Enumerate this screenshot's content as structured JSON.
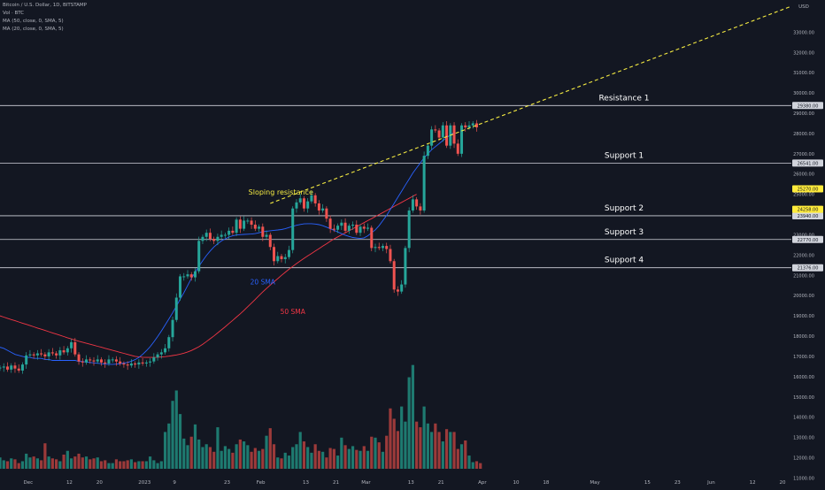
{
  "header": {
    "title": "Bitcoin / U.S. Dollar, 1D, BITSTAMP",
    "volume_label": "Vol · BTC",
    "ma50_label": "MA (50, close, 0, SMA, 5)",
    "ma20_label": "MA (20, close, 0, SMA, 5)"
  },
  "chart_data": {
    "type": "candlestick",
    "currency_label": "USD",
    "ylim": [
      10800,
      34500
    ],
    "price_ticks": [
      11000,
      12000,
      13000,
      14000,
      15000,
      16000,
      17000,
      18000,
      19000,
      20000,
      21000,
      22000,
      23000,
      24000,
      25000,
      26000,
      27000,
      28000,
      29000,
      30000,
      31000,
      32000,
      33000
    ],
    "time_labels": [
      {
        "label": "Dec",
        "bar": 7.5
      },
      {
        "label": "12",
        "bar": 18.5
      },
      {
        "label": "20",
        "bar": 26.5
      },
      {
        "label": "2023",
        "bar": 38.5
      },
      {
        "label": "9",
        "bar": 46.5
      },
      {
        "label": "23",
        "bar": 60.5
      },
      {
        "label": "Feb",
        "bar": 69.5
      },
      {
        "label": "13",
        "bar": 81.5
      },
      {
        "label": "21",
        "bar": 89.5
      },
      {
        "label": "Mar",
        "bar": 97.5
      },
      {
        "label": "13",
        "bar": 109.5
      },
      {
        "label": "21",
        "bar": 117.5
      },
      {
        "label": "Apr",
        "bar": 128.5
      },
      {
        "label": "10",
        "bar": 137.5
      },
      {
        "label": "18",
        "bar": 145.5
      },
      {
        "label": "May",
        "bar": 158.5
      },
      {
        "label": "15",
        "bar": 172.5
      },
      {
        "label": "23",
        "bar": 180.5
      },
      {
        "label": "Jun",
        "bar": 189.5
      },
      {
        "label": "12",
        "bar": 200.5
      },
      {
        "label": "20",
        "bar": 208.5
      }
    ],
    "closes": [
      16450,
      16500,
      16350,
      16550,
      16400,
      16300,
      16600,
      17050,
      17100,
      17050,
      17150,
      17100,
      17000,
      17200,
      17150,
      17050,
      17300,
      17200,
      17400,
      17700,
      17100,
      16750,
      16700,
      16850,
      16800,
      16750,
      16850,
      16700,
      16650,
      16850,
      16850,
      16750,
      16650,
      16600,
      16550,
      16650,
      16600,
      16700,
      16650,
      16700,
      16750,
      16950,
      17100,
      17200,
      17400,
      17950,
      18800,
      19900,
      20950,
      20950,
      21050,
      20900,
      21200,
      22700,
      22900,
      23100,
      22800,
      22700,
      22900,
      23000,
      23000,
      23200,
      23100,
      23750,
      23300,
      23700,
      23700,
      23500,
      23300,
      23400,
      22900,
      23000,
      22400,
      21700,
      21950,
      21800,
      21900,
      22250,
      24300,
      24600,
      24800,
      24300,
      24650,
      24950,
      24550,
      24200,
      24300,
      23800,
      23300,
      23250,
      23450,
      23600,
      23200,
      23450,
      23500,
      23100,
      23400,
      23300,
      23350,
      22350,
      22400,
      22350,
      22450,
      22300,
      21700,
      20300,
      20200,
      20550,
      22350,
      24200,
      24750,
      24400,
      24200,
      26900,
      27400,
      28200,
      28150,
      27800,
      28400,
      27400,
      28400,
      27500,
      27000,
      28400,
      28300,
      28400,
      28500,
      28300
    ],
    "sma20": [
      17450,
      17400,
      17300,
      17200,
      17100,
      17050,
      17000,
      16950,
      16950,
      16900,
      16900,
      16900,
      16850,
      16850,
      16800,
      16800,
      16800,
      16800,
      16800,
      16800,
      16800,
      16750,
      16750,
      16720,
      16700,
      16680,
      16660,
      16640,
      16620,
      16610,
      16610,
      16620,
      16640,
      16670,
      16700,
      16760,
      16840,
      16950,
      17100,
      17280,
      17480,
      17720,
      17980,
      18250,
      18550,
      18850,
      19150,
      19480,
      19820,
      20150,
      20500,
      20850,
      21150,
      21450,
      21720,
      21980,
      22200,
      22400,
      22560,
      22700,
      22800,
      22890,
      22950,
      22990,
      23010,
      23020,
      23030,
      23040,
      23060,
      23100,
      23150,
      23180,
      23200,
      23220,
      23240,
      23260,
      23300,
      23360,
      23420,
      23470,
      23510,
      23540,
      23550,
      23550,
      23530,
      23500,
      23450,
      23380,
      23300,
      23220,
      23140,
      23060,
      22980,
      22920,
      22870,
      22840,
      22820,
      22850,
      22950,
      23100,
      23250,
      23450,
      23700,
      23950,
      24250,
      24550,
      24850,
      25150,
      25450,
      25750,
      26050,
      26300,
      26550,
      26800,
      27000,
      27200,
      27350,
      27500,
      27650,
      27800,
      27930,
      28050
    ],
    "sma50": [
      19000,
      18940,
      18880,
      18820,
      18760,
      18700,
      18640,
      18580,
      18520,
      18460,
      18400,
      18340,
      18280,
      18220,
      18160,
      18100,
      18040,
      17980,
      17920,
      17860,
      17800,
      17750,
      17700,
      17650,
      17600,
      17550,
      17500,
      17450,
      17400,
      17350,
      17300,
      17250,
      17200,
      17150,
      17100,
      17050,
      17000,
      16980,
      16960,
      16950,
      16950,
      16950,
      16960,
      16970,
      16990,
      17010,
      17040,
      17070,
      17110,
      17160,
      17220,
      17290,
      17380,
      17480,
      17600,
      17730,
      17870,
      18010,
      18160,
      18310,
      18460,
      18620,
      18780,
      18940,
      19100,
      19270,
      19450,
      19630,
      19810,
      20000,
      20180,
      20350,
      20520,
      20680,
      20840,
      21000,
      21150,
      21300,
      21440,
      21580,
      21710,
      21840,
      21960,
      22080,
      22200,
      22320,
      22440,
      22560,
      22680,
      22800,
      22900,
      23000,
      23100,
      23200,
      23300,
      23400,
      23500,
      23600,
      23700,
      23800,
      23900,
      24000,
      24100,
      24200,
      24300,
      24400,
      24500,
      24600,
      24700,
      24800,
      24900,
      25000
    ],
    "volume_ylim": [
      0,
      12
    ],
    "volumes": [
      1.2,
      0.9,
      0.8,
      1.1,
      1.0,
      0.6,
      0.8,
      1.6,
      1.2,
      1.3,
      1.1,
      0.9,
      2.7,
      1.3,
      1.1,
      1.0,
      0.8,
      1.5,
      1.9,
      1.1,
      1.3,
      1.6,
      1.2,
      1.3,
      1.0,
      1.1,
      1.2,
      0.8,
      0.9,
      0.6,
      0.6,
      1.0,
      0.8,
      0.8,
      0.9,
      1.0,
      0.7,
      0.8,
      0.8,
      0.8,
      1.3,
      0.9,
      0.6,
      0.8,
      3.9,
      4.8,
      7.2,
      8.3,
      5.8,
      3.2,
      2.5,
      3.4,
      4.7,
      3.1,
      2.3,
      2.6,
      2.3,
      1.8,
      4.4,
      1.9,
      2.4,
      2.1,
      1.7,
      2.6,
      3.1,
      2.9,
      2.5,
      1.8,
      2.2,
      1.9,
      2.1,
      3.5,
      4.3,
      2.6,
      1.2,
      1.1,
      1.7,
      1.4,
      2.3,
      2.6,
      3.9,
      2.9,
      2.3,
      1.7,
      2.6,
      1.9,
      1.8,
      1.2,
      2.2,
      2.1,
      1.4,
      3.3,
      2.5,
      2.1,
      2.4,
      2.0,
      1.9,
      2.4,
      1.9,
      3.4,
      3.3,
      2.8,
      1.8,
      3.5,
      6.4,
      5.3,
      4.0,
      6.6,
      5.0,
      9.7,
      11.0,
      5.0,
      4.4,
      6.6,
      4.8,
      3.9,
      4.8,
      3.9,
      2.9,
      4.2,
      3.9,
      3.9,
      2.1,
      2.6,
      3.0,
      1.4,
      0.7,
      0.8,
      0.6
    ],
    "horizontal_levels": [
      {
        "price": 29380,
        "label": "Resistance 1",
        "price_label": "29380.00"
      },
      {
        "price": 26541,
        "label": "Support 1",
        "price_label": "26541.00"
      },
      {
        "price": 23940,
        "label": "Support 2",
        "price_label": "23940.00"
      },
      {
        "price": 22770,
        "label": "Support 3",
        "price_label": "22770.00"
      },
      {
        "price": 21376,
        "label": "Support 4",
        "price_label": "21376.00"
      }
    ],
    "price_markers": [
      {
        "price": 25270,
        "label": "25270.00"
      },
      {
        "price": 24258,
        "label": "24258.00"
      }
    ],
    "trendline": {
      "label": "Sloping resistance",
      "from": {
        "bar": 72,
        "price": 24550
      },
      "to": {
        "bar": 214,
        "price": 34500
      }
    },
    "annotations": [
      {
        "text": "20 SMA",
        "bar": 70,
        "price": 20550
      },
      {
        "text": "50 SMA",
        "bar": 78,
        "price": 19100
      }
    ],
    "colors": {
      "up": "#26a69a",
      "down": "#ef5350",
      "up_volume": "#1e7a70",
      "down_volume": "#9c3a3a",
      "sma20": "#2962ff",
      "sma50": "#f23645",
      "trendline": "#f5eb42",
      "level_line": "#d1d4dc",
      "level_label": "#ffffff",
      "annotation_yellow": "#f5eb42",
      "marker_yellow": "#ffeb3b"
    }
  }
}
